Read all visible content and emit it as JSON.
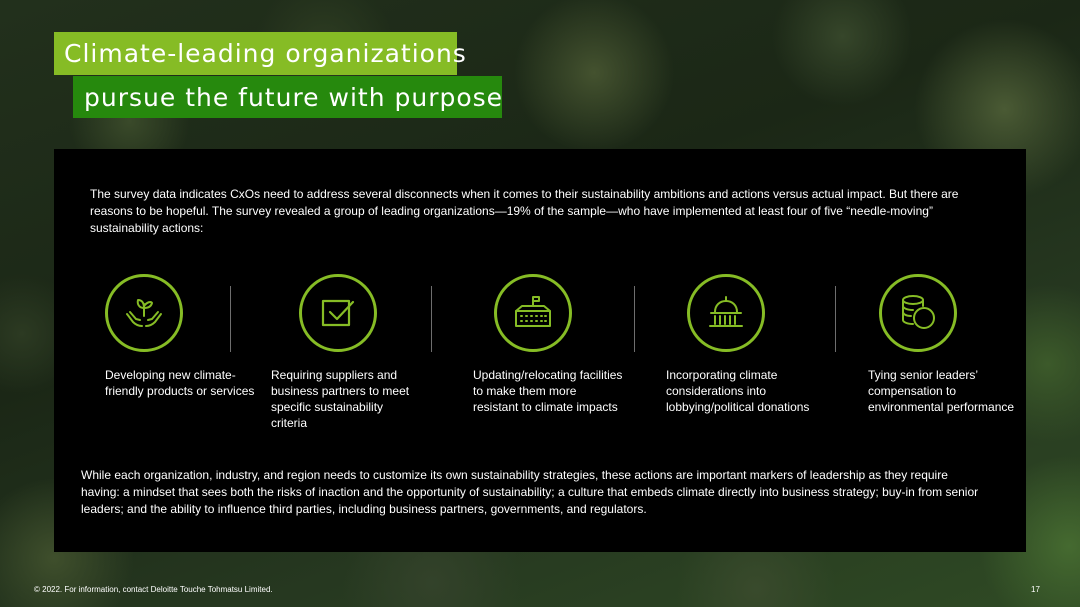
{
  "title": {
    "line1": "Climate-leading organizations",
    "line2": "pursue the future with purpose"
  },
  "panel": {
    "intro": "The survey data indicates CxOs need to address several disconnects when it comes to their sustainability ambitions and actions versus actual impact.  But there are reasons to be hopeful. The survey revealed a group of leading organizations—19% of the sample—who have implemented at least four of five “needle-moving” sustainability actions:",
    "actions": [
      {
        "icon": "hands-plant-icon",
        "text": "Developing new climate-friendly products or services"
      },
      {
        "icon": "checkbox-icon",
        "text": "Requiring suppliers and business partners to meet specific sustainability criteria"
      },
      {
        "icon": "factory-icon",
        "text": "Updating/relocating facilities to make them more resistant to climate impacts"
      },
      {
        "icon": "capitol-icon",
        "text": "Incorporating climate considerations into lobbying/political donations"
      },
      {
        "icon": "coins-icon",
        "text": "Tying senior leaders’ compensation to environmental performance"
      }
    ],
    "outro": "While each organization, industry, and region needs to customize its own sustainability strategies, these actions are important markers of leadership as they require having: a mindset that sees both the risks of inaction and the opportunity of sustainability; a culture that embeds climate directly into business strategy; buy-in from senior leaders; and the ability to influence third parties, including business partners, governments, and regulators."
  },
  "footer": {
    "copyright": "© 2022. For information, contact Deloitte Touche Tohmatsu Limited.",
    "page_number": "17"
  },
  "colors": {
    "accent_light_green": "#86bc25",
    "accent_dark_green": "#26890d",
    "panel_background": "#000000"
  }
}
